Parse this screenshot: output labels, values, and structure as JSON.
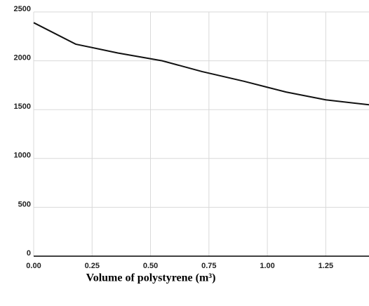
{
  "chart_data": {
    "type": "line",
    "x_label": "Volume of polystyrene (m³)",
    "x": [
      0,
      0.18,
      0.36,
      0.55,
      0.72,
      0.9,
      1.08,
      1.25,
      1.435
    ],
    "series": [
      {
        "color": "#111111",
        "values": [
          2390,
          2170,
          2080,
          2000,
          1890,
          1790,
          1680,
          1600,
          1550
        ]
      }
    ],
    "xlim": [
      0,
      1.435
    ],
    "xticks": [
      {
        "value": 0,
        "label": "0.00"
      },
      {
        "value": 0.25,
        "label": "0.25"
      },
      {
        "value": 0.5,
        "label": "0.50"
      },
      {
        "value": 0.75,
        "label": "0.75"
      },
      {
        "value": 1,
        "label": "1.00"
      },
      {
        "value": 1.25,
        "label": "1.25"
      }
    ],
    "ylim": [
      0,
      2500
    ],
    "yticks": [
      0,
      500,
      1000,
      1500,
      2000,
      2500
    ],
    "grid": true
  }
}
